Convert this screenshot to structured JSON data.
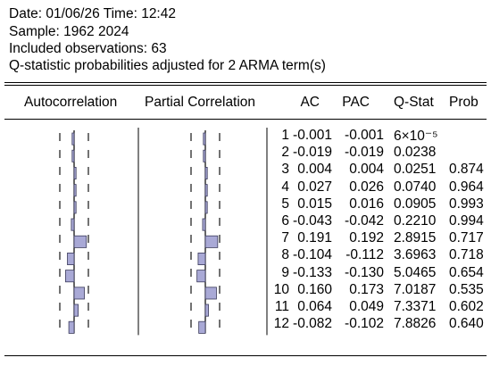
{
  "header": {
    "line1": "Date: 01/06/26   Time: 12:42",
    "line2": "Sample: 1962 2024",
    "line3": "Included observations: 63",
    "line4": "Q-statistic probabilities adjusted for 2 ARMA term(s)"
  },
  "columns": {
    "autocorrelation": "Autocorrelation",
    "partial_correlation": "Partial Correlation",
    "ac": "AC",
    "pac": "PAC",
    "qstat": "Q-Stat",
    "prob": "Prob"
  },
  "colors": {
    "bar_fill": "#a9a9d6",
    "bar_stroke": "#3a3a5a"
  },
  "rows": [
    {
      "lag": "1",
      "ac": "-0.001",
      "pac": "-0.001",
      "q": "6×10⁻⁵",
      "prob": ""
    },
    {
      "lag": "2",
      "ac": "-0.019",
      "pac": "-0.019",
      "q": "0.0238",
      "prob": ""
    },
    {
      "lag": "3",
      "ac": "0.004",
      "pac": "0.004",
      "q": "0.0251",
      "prob": "0.874"
    },
    {
      "lag": "4",
      "ac": "0.027",
      "pac": "0.026",
      "q": "0.0740",
      "prob": "0.964"
    },
    {
      "lag": "5",
      "ac": "0.015",
      "pac": "0.016",
      "q": "0.0905",
      "prob": "0.993"
    },
    {
      "lag": "6",
      "ac": "-0.043",
      "pac": "-0.042",
      "q": "0.2210",
      "prob": "0.994"
    },
    {
      "lag": "7",
      "ac": "0.191",
      "pac": "0.192",
      "q": "2.8915",
      "prob": "0.717"
    },
    {
      "lag": "8",
      "ac": "-0.104",
      "pac": "-0.112",
      "q": "3.6963",
      "prob": "0.718"
    },
    {
      "lag": "9",
      "ac": "-0.133",
      "pac": "-0.130",
      "q": "5.0465",
      "prob": "0.654"
    },
    {
      "lag": "10",
      "ac": "0.160",
      "pac": "0.173",
      "q": "7.0187",
      "prob": "0.535"
    },
    {
      "lag": "11",
      "ac": "0.064",
      "pac": "0.049",
      "q": "7.3371",
      "prob": "0.602"
    },
    {
      "lag": "12",
      "ac": "-0.082",
      "pac": "-0.102",
      "q": "7.8826",
      "prob": "0.640"
    }
  ]
}
